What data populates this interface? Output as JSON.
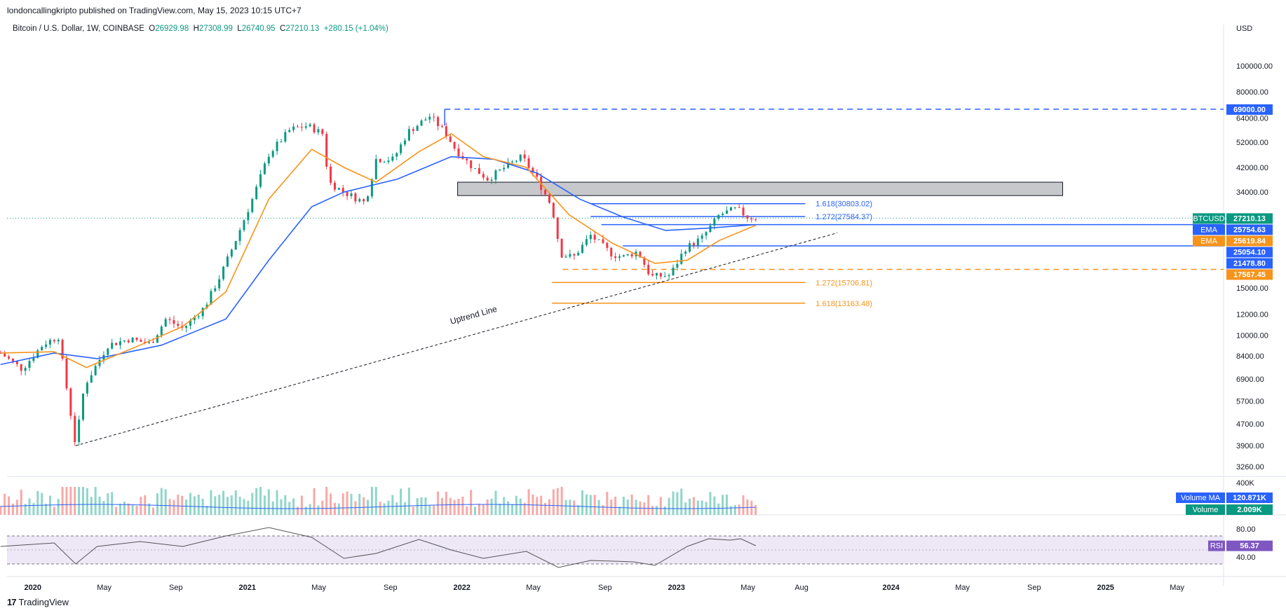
{
  "header": {
    "publisher": "londoncallingkripto published on TradingView.com, May 15, 2023 10:15 UTC+7",
    "symbol": "Bitcoin / U.S. Dollar, 1W, COINBASE",
    "open_label": "O",
    "open": "26929.98",
    "high_label": "H",
    "high": "27308.99",
    "low_label": "L",
    "low": "26740.95",
    "close_label": "C",
    "close": "27210.13",
    "change": "+280.15 (+1.04%)"
  },
  "footer": {
    "logo_glyph": "17",
    "brand": "TradingView"
  },
  "chart_data": {
    "type": "line",
    "title": "Bitcoin / U.S. Dollar, 1W, COINBASE",
    "currency": "USD",
    "yscale": "log",
    "ylim": [
      3000,
      130000
    ],
    "y_ticks": [
      "100000.00",
      "80000.00",
      "64000.00",
      "52000.00",
      "42000.00",
      "34000.00",
      "15000.00",
      "12000.00",
      "10000.00",
      "8400.00",
      "6900.00",
      "5700.00",
      "4700.00",
      "3900.00",
      "3260.00"
    ],
    "y_tick_values": [
      100000,
      80000,
      64000,
      52000,
      42000,
      34000,
      15000,
      12000,
      10000,
      8400,
      6900,
      5700,
      4700,
      3900,
      3260
    ],
    "x_ticks": [
      "2020",
      "May",
      "Sep",
      "2021",
      "May",
      "Sep",
      "2022",
      "May",
      "Sep",
      "2023",
      "May",
      "Aug",
      "2024",
      "May",
      "Sep",
      "2025",
      "May"
    ],
    "x_tick_dates": [
      2020.0,
      2020.333,
      2020.667,
      2021.0,
      2021.333,
      2021.667,
      2022.0,
      2022.333,
      2022.667,
      2023.0,
      2023.333,
      2023.583,
      2024.0,
      2024.333,
      2024.667,
      2025.0,
      2025.333
    ],
    "price_path": [
      [
        2019.85,
        8600
      ],
      [
        2019.95,
        7500
      ],
      [
        2020.05,
        9300
      ],
      [
        2020.12,
        9900
      ],
      [
        2020.2,
        3900
      ],
      [
        2020.24,
        6500
      ],
      [
        2020.35,
        9200
      ],
      [
        2020.45,
        9700
      ],
      [
        2020.55,
        9300
      ],
      [
        2020.62,
        11500
      ],
      [
        2020.7,
        10600
      ],
      [
        2020.8,
        12700
      ],
      [
        2020.88,
        17000
      ],
      [
        2020.95,
        23000
      ],
      [
        2021.03,
        33000
      ],
      [
        2021.1,
        47000
      ],
      [
        2021.2,
        58000
      ],
      [
        2021.28,
        60000
      ],
      [
        2021.35,
        56000
      ],
      [
        2021.38,
        37000
      ],
      [
        2021.45,
        34000
      ],
      [
        2021.55,
        31000
      ],
      [
        2021.6,
        45000
      ],
      [
        2021.68,
        45000
      ],
      [
        2021.75,
        57000
      ],
      [
        2021.85,
        65000
      ],
      [
        2021.92,
        57000
      ],
      [
        2021.97,
        49000
      ],
      [
        2022.05,
        42000
      ],
      [
        2022.12,
        38000
      ],
      [
        2022.2,
        42000
      ],
      [
        2022.28,
        46000
      ],
      [
        2022.35,
        38000
      ],
      [
        2022.42,
        30000
      ],
      [
        2022.46,
        20000
      ],
      [
        2022.52,
        19500
      ],
      [
        2022.6,
        23500
      ],
      [
        2022.7,
        20000
      ],
      [
        2022.75,
        19500
      ],
      [
        2022.82,
        20500
      ],
      [
        2022.88,
        16500
      ],
      [
        2022.97,
        16700
      ],
      [
        2023.04,
        21000
      ],
      [
        2023.12,
        23000
      ],
      [
        2023.2,
        28000
      ],
      [
        2023.28,
        29500
      ],
      [
        2023.33,
        27500
      ],
      [
        2023.37,
        27210
      ]
    ],
    "ema_fast": [
      [
        2019.85,
        8600
      ],
      [
        2020.1,
        8700
      ],
      [
        2020.25,
        7600
      ],
      [
        2020.5,
        9200
      ],
      [
        2020.7,
        10800
      ],
      [
        2020.9,
        14500
      ],
      [
        2021.1,
        32000
      ],
      [
        2021.3,
        49000
      ],
      [
        2021.45,
        42000
      ],
      [
        2021.6,
        37000
      ],
      [
        2021.8,
        48000
      ],
      [
        2021.95,
        56000
      ],
      [
        2022.1,
        46000
      ],
      [
        2022.3,
        42000
      ],
      [
        2022.5,
        28000
      ],
      [
        2022.7,
        22000
      ],
      [
        2022.9,
        18500
      ],
      [
        2023.05,
        19000
      ],
      [
        2023.2,
        22500
      ],
      [
        2023.37,
        25619
      ]
    ],
    "ema_slow": [
      [
        2019.85,
        7800
      ],
      [
        2020.1,
        8600
      ],
      [
        2020.3,
        8200
      ],
      [
        2020.6,
        9200
      ],
      [
        2020.9,
        11500
      ],
      [
        2021.1,
        19000
      ],
      [
        2021.3,
        30000
      ],
      [
        2021.45,
        34000
      ],
      [
        2021.7,
        38000
      ],
      [
        2021.95,
        46000
      ],
      [
        2022.15,
        45000
      ],
      [
        2022.35,
        40000
      ],
      [
        2022.55,
        32000
      ],
      [
        2022.75,
        27500
      ],
      [
        2022.95,
        24500
      ],
      [
        2023.15,
        25000
      ],
      [
        2023.37,
        25754
      ]
    ],
    "fib_upper": [
      {
        "label": "1.618(30803.02)",
        "value": 30803.02
      },
      {
        "label": "1.272(27584.37)",
        "value": 27584.37
      }
    ],
    "fib_lower": [
      {
        "label": "1.272(15706.81)",
        "value": 15706.81
      },
      {
        "label": "1.618(13163.48)",
        "value": 13163.48
      }
    ],
    "resistance_zone": [
      33000,
      37000
    ],
    "ath_line": 69000,
    "support_line_orange": 17567.45,
    "hline_25754": 25754.63,
    "hline_21478": 21478.8,
    "trendline": {
      "label": "Uptrend Line",
      "from": [
        2020.2,
        3900
      ],
      "to": [
        2023.75,
        24000
      ]
    },
    "price_labels": [
      {
        "text": "69000.00",
        "value": 69000,
        "color": "#2962ff"
      },
      {
        "text": "27210.13",
        "value": 27210.13,
        "color": "#089981",
        "tag": "BTCUSD"
      },
      {
        "text": "25754.63",
        "value": 25754.63,
        "color": "#2962ff",
        "tag": "EMA"
      },
      {
        "text": "25619.84",
        "value": 25619.84,
        "color": "#f7931a",
        "tag": "EMA"
      },
      {
        "text": "25054.10",
        "value": 25054.1,
        "color": "#2962ff"
      },
      {
        "text": "21478.80",
        "value": 21478.8,
        "color": "#2962ff"
      },
      {
        "text": "17567.45",
        "value": 17567.45,
        "color": "#f7931a"
      }
    ],
    "volume": {
      "ylabel": "400K",
      "ma_label": "Volume MA",
      "ma_value": "120.871K",
      "vol_label": "Volume",
      "vol_value": "2.009K"
    },
    "rsi": {
      "label": "RSI",
      "value": "56.37",
      "levels": [
        "80.00",
        "40.00"
      ],
      "path": [
        [
          2019.85,
          55
        ],
        [
          2020.1,
          60
        ],
        [
          2020.2,
          30
        ],
        [
          2020.3,
          55
        ],
        [
          2020.5,
          62
        ],
        [
          2020.7,
          55
        ],
        [
          2020.9,
          70
        ],
        [
          2021.1,
          82
        ],
        [
          2021.3,
          68
        ],
        [
          2021.45,
          38
        ],
        [
          2021.6,
          45
        ],
        [
          2021.8,
          65
        ],
        [
          2021.95,
          50
        ],
        [
          2022.1,
          38
        ],
        [
          2022.3,
          48
        ],
        [
          2022.45,
          25
        ],
        [
          2022.6,
          35
        ],
        [
          2022.8,
          33
        ],
        [
          2022.9,
          28
        ],
        [
          2023.05,
          55
        ],
        [
          2023.15,
          66
        ],
        [
          2023.25,
          64
        ],
        [
          2023.3,
          66
        ],
        [
          2023.37,
          56
        ]
      ]
    }
  },
  "colors": {
    "up": "#089981",
    "down": "#f23645",
    "ema_fast": "#f7931a",
    "ema_slow": "#2962ff",
    "fib_blue": "#2962ff",
    "fib_orange": "#f7931a"
  }
}
